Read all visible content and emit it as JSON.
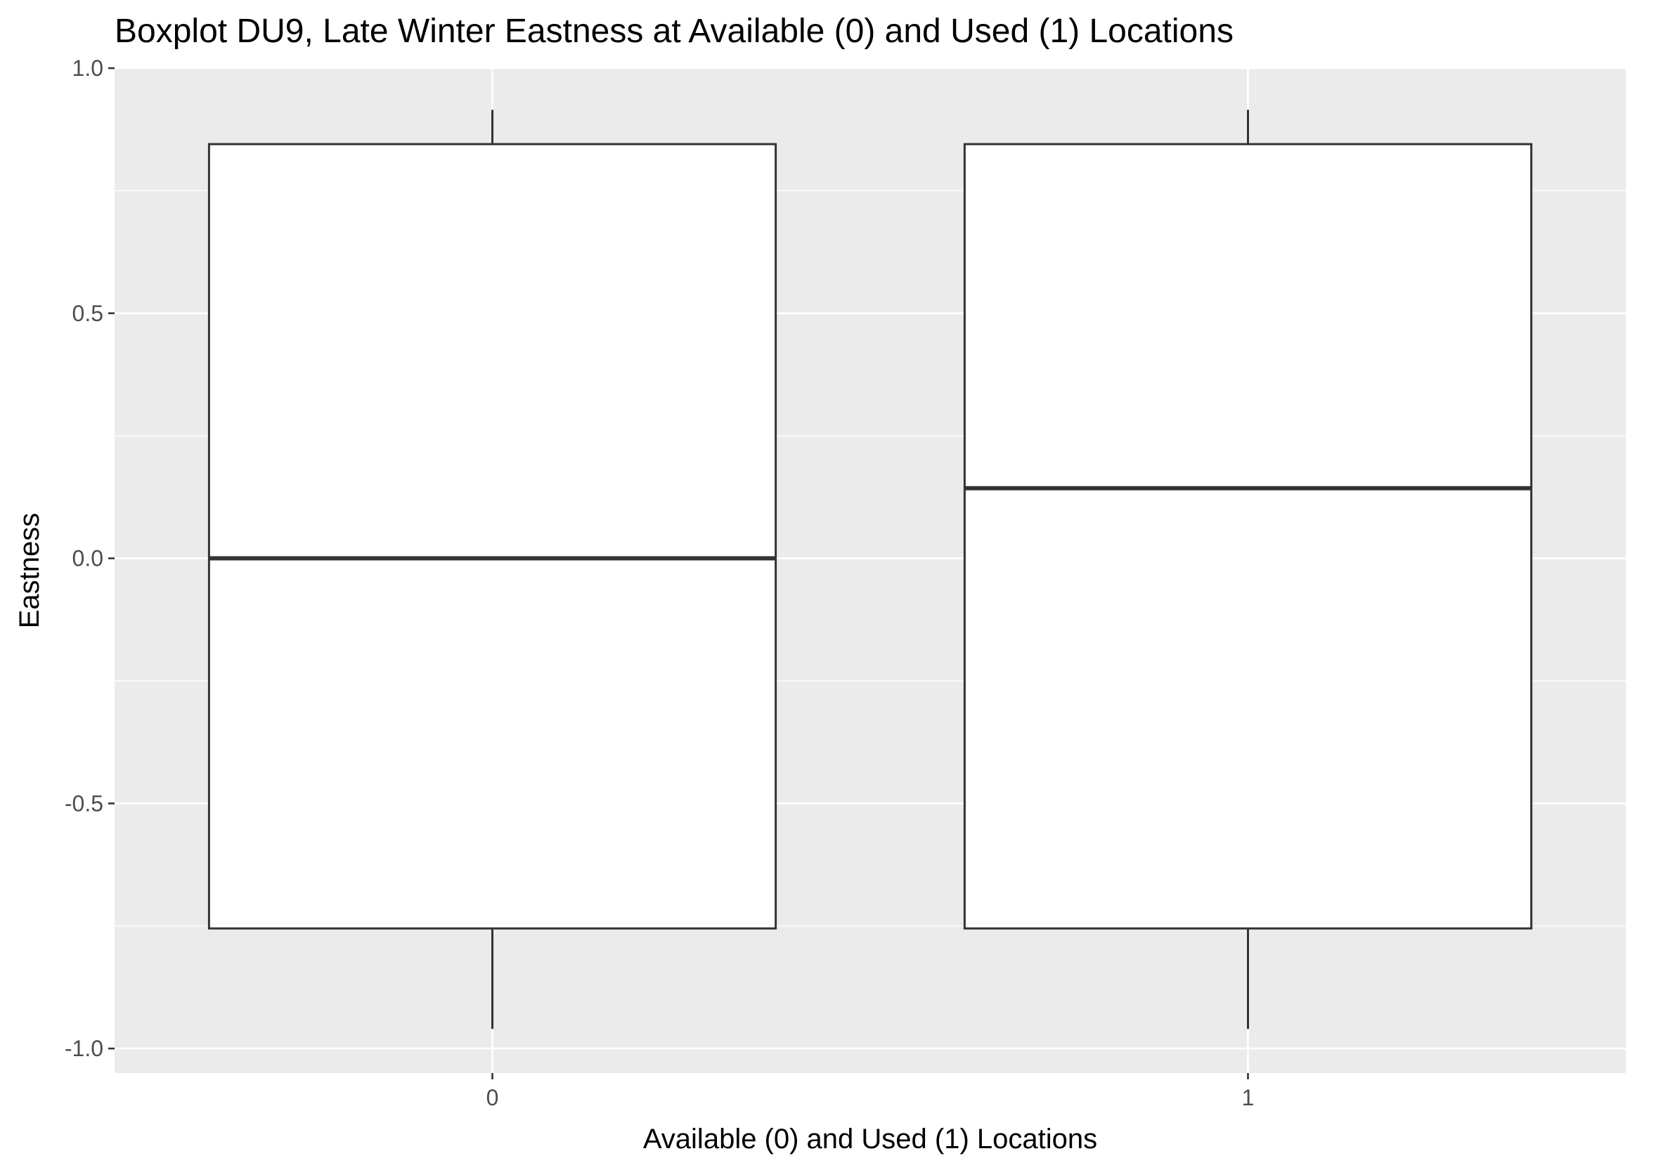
{
  "chart_data": {
    "type": "boxplot",
    "title": "Boxplot DU9, Late Winter Eastness at Available (0) and Used (1) Locations",
    "xlabel": "Available (0) and Used (1) Locations",
    "ylabel": "Eastness",
    "categories": [
      "0",
      "1"
    ],
    "ylim": [
      -1.05,
      1.0
    ],
    "yticks": [
      -1.0,
      -0.5,
      0.0,
      0.5,
      1.0
    ],
    "ytick_labels": [
      "-1.0",
      "-0.5",
      "0.0",
      "0.5",
      "1.0"
    ],
    "grid": true,
    "boxes": [
      {
        "category": "0",
        "whisker_low": -0.96,
        "q1": -0.755,
        "median": 0.0,
        "q3": 0.845,
        "whisker_high": 0.915
      },
      {
        "category": "1",
        "whisker_low": -0.96,
        "q1": -0.755,
        "median": 0.143,
        "q3": 0.845,
        "whisker_high": 0.915
      }
    ],
    "colors": {
      "panel_background": "#ebebeb",
      "grid_line": "#ffffff",
      "box_fill": "#ffffff",
      "box_stroke": "#333333",
      "tick_text": "#4d4d4d",
      "tick_mark": "#333333"
    }
  }
}
